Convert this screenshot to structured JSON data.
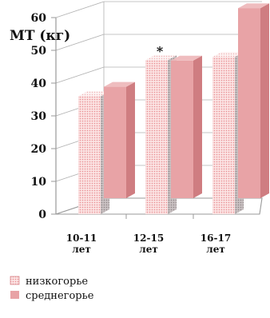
{
  "chart_data": {
    "type": "bar",
    "title": "МТ (кг)",
    "categories": [
      [
        "10-11",
        "лет"
      ],
      [
        "12-15",
        "лет"
      ],
      [
        "16-17",
        "лет"
      ]
    ],
    "ylim": [
      0,
      60
    ],
    "yticks": [
      "0",
      "10",
      "20",
      "30",
      "40",
      "50",
      "60"
    ],
    "series": [
      {
        "name": "низкогорье",
        "values": [
          36,
          47,
          48
        ],
        "annotations": [
          "",
          "*",
          ""
        ]
      },
      {
        "name": "среднегорье",
        "values": [
          34,
          42,
          58
        ],
        "annotations": [
          "",
          "",
          "*"
        ]
      }
    ],
    "grid": true,
    "legend": "bottom-left",
    "colors": {
      "low_front": "#fbe3e3",
      "low_dots": "#e98f93",
      "low_side": "#c9c1c2",
      "low_side_dots": "#8f8586",
      "mid_front": "#e8a3a6",
      "mid_side": "#cf7d81",
      "mid_top": "#efbdbf",
      "axis": "#999999",
      "grid": "#b0b0b0"
    }
  }
}
